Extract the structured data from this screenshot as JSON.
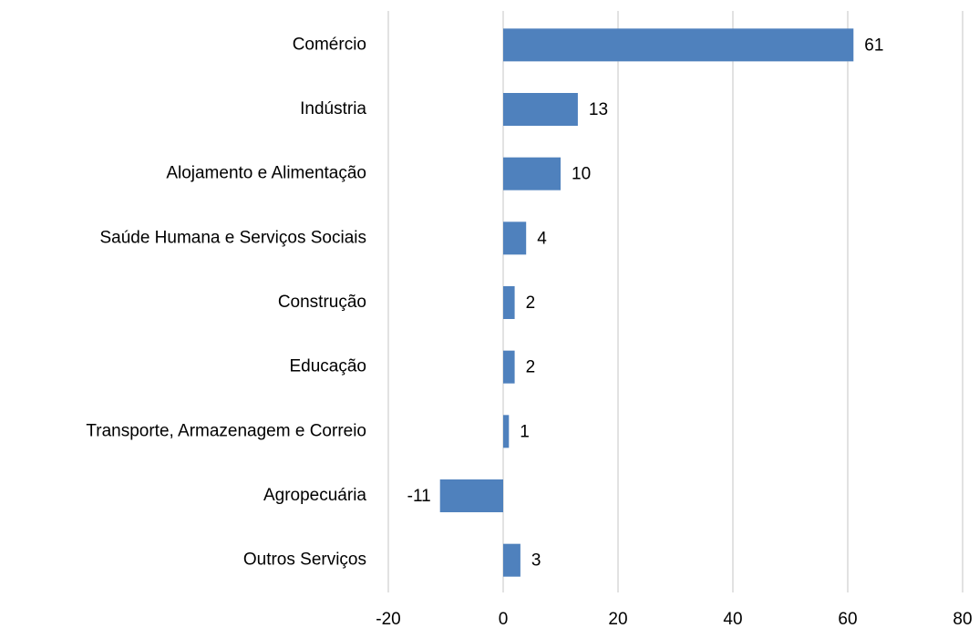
{
  "chart_data": {
    "type": "bar",
    "orientation": "horizontal",
    "categories": [
      "Comércio",
      "Indústria",
      "Alojamento e Alimentação",
      "Saúde Humana e Serviços Sociais",
      "Construção",
      "Educação",
      "Transporte, Armazenagem e Correio",
      "Agropecuária",
      "Outros Serviços"
    ],
    "values": [
      61,
      13,
      10,
      4,
      2,
      2,
      1,
      -11,
      3
    ],
    "color": "#4f81bd",
    "xlim": [
      -20,
      80
    ],
    "xticks": [
      -20,
      0,
      20,
      40,
      60,
      80
    ],
    "grid": true
  }
}
